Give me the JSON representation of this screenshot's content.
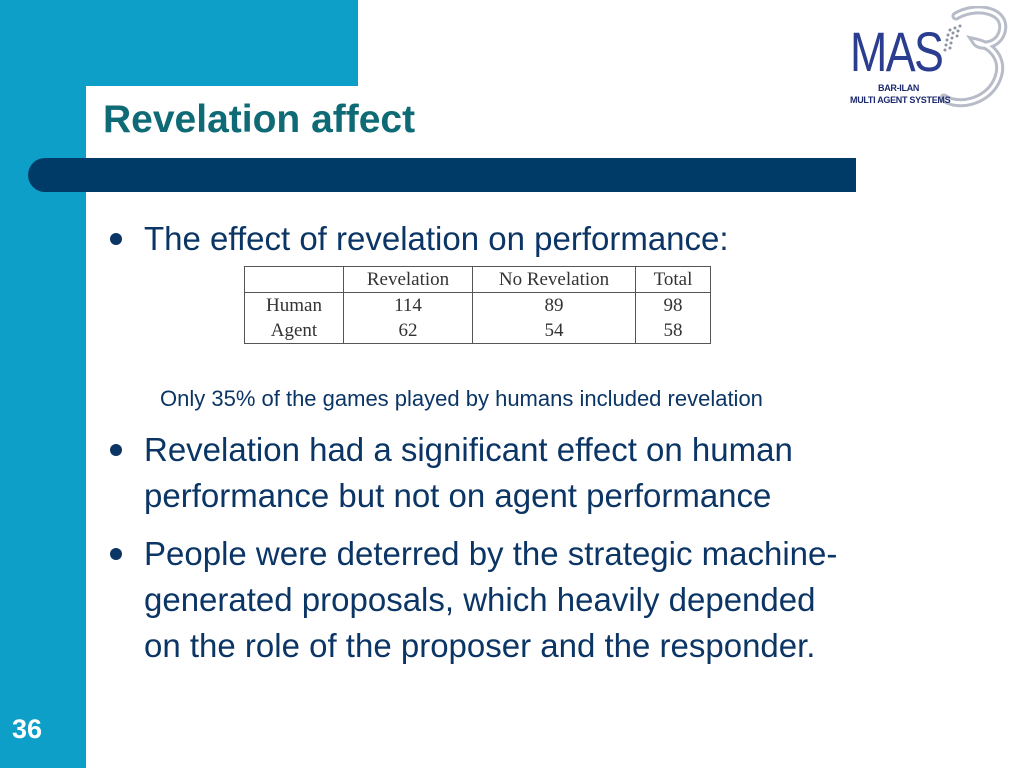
{
  "slide": {
    "title": "Revelation affect",
    "number": "36"
  },
  "logo": {
    "name": "MAS",
    "line1": "BAR-ILAN",
    "line2": "MULTI AGENT SYSTEMS"
  },
  "bullets": [
    {
      "text": "The effect of revelation on performance:"
    },
    {
      "lines": [
        "Revelation had a significant effect on human",
        "performance but not on agent performance"
      ]
    },
    {
      "lines": [
        "People were deterred by the strategic machine-",
        "generated proposals, which heavily depended",
        "on the role of the proposer and the responder."
      ]
    }
  ],
  "note": "Only 35% of the games played by humans included revelation",
  "table": {
    "headers": [
      "",
      "Revelation",
      "No Revelation",
      "Total"
    ],
    "rows": [
      [
        "Human",
        "114",
        "89",
        "98"
      ],
      [
        "Agent",
        "62",
        "54",
        "58"
      ]
    ]
  },
  "colors": {
    "accent_band": "#0e9fc8",
    "title_bar": "#003a66",
    "title_text": "#0e6a74",
    "body_text": "#0b3565"
  }
}
